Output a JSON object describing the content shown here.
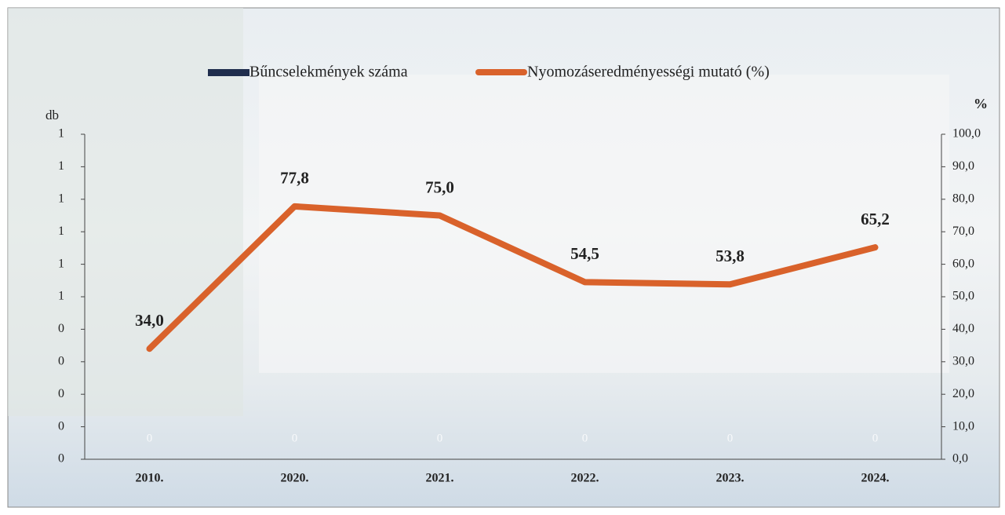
{
  "chart_data": {
    "type": "bar-line",
    "categories": [
      "2010.",
      "2020.",
      "2021.",
      "2022.",
      "2023.",
      "2024."
    ],
    "y_axis_title": "db",
    "y2_axis_title": "%",
    "ylim": [
      0,
      1
    ],
    "yticks": [
      {
        "value": 0,
        "label": "0"
      },
      {
        "value": 0.1,
        "label": "0"
      },
      {
        "value": 0.2,
        "label": "0"
      },
      {
        "value": 0.3,
        "label": "0"
      },
      {
        "value": 0.4,
        "label": "0"
      },
      {
        "value": 0.5,
        "label": "1"
      },
      {
        "value": 0.6,
        "label": "1"
      },
      {
        "value": 0.7,
        "label": "1"
      },
      {
        "value": 0.8,
        "label": "1"
      },
      {
        "value": 0.9,
        "label": "1"
      },
      {
        "value": 1,
        "label": "1"
      }
    ],
    "y2lim": [
      0,
      100
    ],
    "y2ticks": [
      {
        "value": 0,
        "label": "0,0"
      },
      {
        "value": 10,
        "label": "10,0"
      },
      {
        "value": 20,
        "label": "20,0"
      },
      {
        "value": 30,
        "label": "30,0"
      },
      {
        "value": 40,
        "label": "40,0"
      },
      {
        "value": 50,
        "label": "50,0"
      },
      {
        "value": 60,
        "label": "60,0"
      },
      {
        "value": 70,
        "label": "70,0"
      },
      {
        "value": 80,
        "label": "80,0"
      },
      {
        "value": 90,
        "label": "90,0"
      },
      {
        "value": 100,
        "label": "100,0"
      }
    ],
    "legend_position": "top",
    "series": [
      {
        "name": "Bűncselekmények száma",
        "type": "bar",
        "color": "#1f2d4d",
        "values": [
          0,
          0,
          0,
          0,
          0,
          0
        ]
      },
      {
        "name": "Nyomozáseredményességi mutató (%)",
        "type": "line",
        "axis": "y2",
        "color": "#d9622b",
        "values": [
          34.0,
          77.8,
          75.0,
          54.5,
          53.8,
          65.2
        ],
        "value_labels": [
          "34,0",
          "77,8",
          "75,0",
          "54,5",
          "53,8",
          "65,2"
        ]
      }
    ]
  }
}
